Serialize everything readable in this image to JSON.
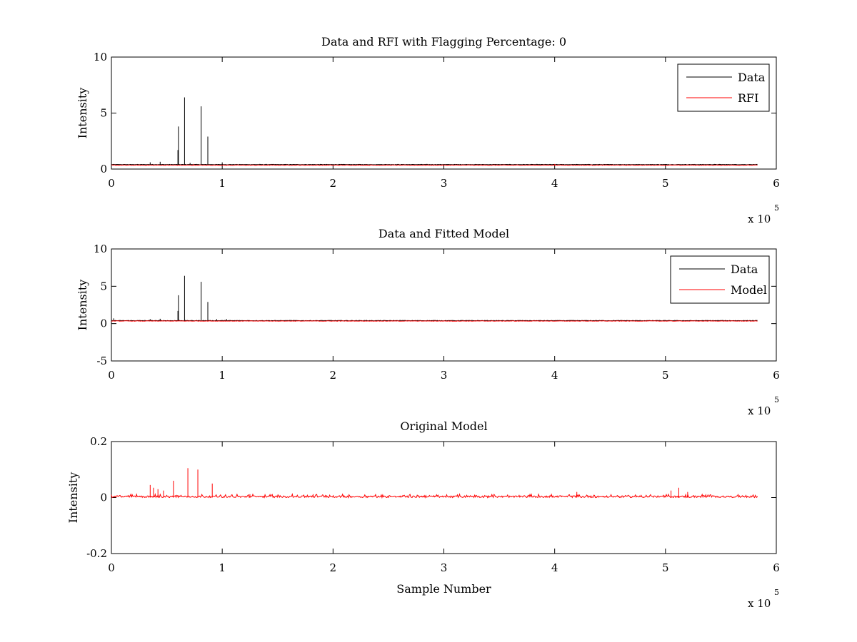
{
  "chart_data": [
    {
      "type": "line",
      "title": "Data and RFI with Flagging Percentage: 0",
      "xlabel": "",
      "ylabel": "Intensity",
      "xlim": [
        0,
        600000
      ],
      "ylim": [
        0,
        10
      ],
      "x_ticks": [
        "0",
        "1",
        "2",
        "3",
        "4",
        "5",
        "6"
      ],
      "y_ticks": [
        "0",
        "5",
        "10"
      ],
      "x_multiplier": {
        "base": "x 10",
        "exp": "5"
      },
      "legend": {
        "position": "top-right",
        "entries": [
          {
            "label": "Data",
            "color": "#000000"
          },
          {
            "label": "RFI",
            "color": "#ff0000"
          }
        ]
      },
      "series": [
        {
          "name": "Data",
          "color": "#000000",
          "baseline": 0.4,
          "spikes": [
            [
              35000,
              0.6
            ],
            [
              44000,
              0.65
            ],
            [
              60000,
              1.7
            ],
            [
              60500,
              3.8
            ],
            [
              66000,
              6.4
            ],
            [
              71000,
              0.55
            ],
            [
              81000,
              5.6
            ],
            [
              87000,
              2.9
            ],
            [
              100000,
              0.6
            ]
          ]
        },
        {
          "name": "RFI",
          "color": "#ff0000",
          "baseline": 0.35,
          "spikes": [
            [
              74000,
              0.45
            ],
            [
              230000,
              0.4
            ],
            [
              400000,
              0.45
            ]
          ]
        }
      ]
    },
    {
      "type": "line",
      "title": "Data and Fitted Model",
      "xlabel": "",
      "ylabel": "Intensity",
      "xlim": [
        0,
        600000
      ],
      "ylim": [
        -5,
        10
      ],
      "x_ticks": [
        "0",
        "1",
        "2",
        "3",
        "4",
        "5",
        "6"
      ],
      "y_ticks": [
        "-5",
        "0",
        "5",
        "10"
      ],
      "x_multiplier": {
        "base": "x 10",
        "exp": "5"
      },
      "legend": {
        "position": "top-right",
        "entries": [
          {
            "label": "Data",
            "color": "#000000"
          },
          {
            "label": "Model",
            "color": "#ff0000"
          }
        ]
      },
      "series": [
        {
          "name": "Data",
          "color": "#000000",
          "baseline": 0.4,
          "spikes": [
            [
              2000,
              0.7
            ],
            [
              35000,
              0.6
            ],
            [
              44000,
              0.65
            ],
            [
              60000,
              1.7
            ],
            [
              60500,
              3.8
            ],
            [
              66000,
              6.4
            ],
            [
              81000,
              5.6
            ],
            [
              87000,
              2.9
            ],
            [
              95000,
              0.6
            ],
            [
              104000,
              0.6
            ],
            [
              230000,
              0.5
            ]
          ]
        },
        {
          "name": "Model",
          "color": "#ff0000",
          "baseline": 0.35,
          "spikes": []
        }
      ]
    },
    {
      "type": "line",
      "title": "Original Model",
      "xlabel": "Sample Number",
      "ylabel": "Intensity",
      "xlim": [
        0,
        600000
      ],
      "ylim": [
        -0.2,
        0.2
      ],
      "x_ticks": [
        "0",
        "1",
        "2",
        "3",
        "4",
        "5",
        "6"
      ],
      "y_ticks": [
        "-0.2",
        "0",
        "0.2"
      ],
      "x_multiplier": {
        "base": "x 10",
        "exp": "5"
      },
      "legend": null,
      "series": [
        {
          "name": "",
          "color": "#ff0000",
          "baseline": 0,
          "spikes": [
            [
              35000,
              0.045
            ],
            [
              38000,
              0.035
            ],
            [
              42000,
              0.03
            ],
            [
              47000,
              0.025
            ],
            [
              56000,
              0.06
            ],
            [
              69000,
              0.105
            ],
            [
              78000,
              0.1
            ],
            [
              91000,
              0.05
            ],
            [
              125000,
              0.012
            ],
            [
              182000,
              0.012
            ],
            [
              420000,
              0.02
            ],
            [
              505000,
              0.025
            ],
            [
              512000,
              0.035
            ],
            [
              520000,
              0.02
            ]
          ]
        }
      ]
    }
  ]
}
